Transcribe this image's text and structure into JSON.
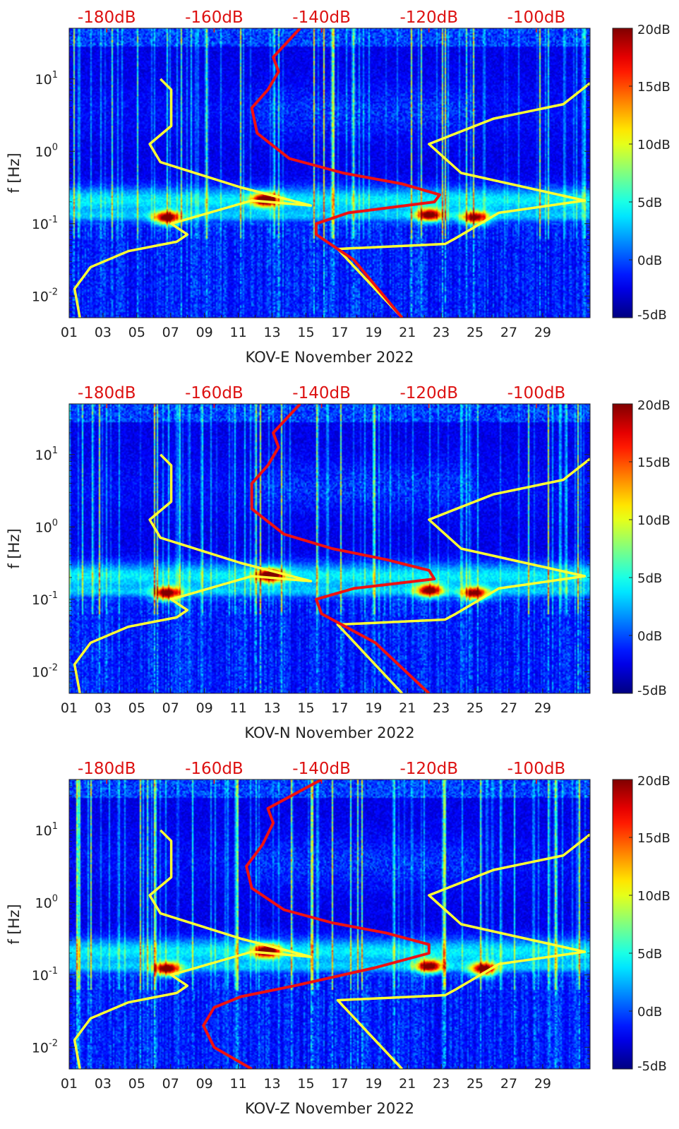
{
  "chart_data": [
    {
      "type": "heatmap",
      "xlabel": "KOV-E November 2022",
      "ylabel": "f [Hz]",
      "x_ticks": [
        "01",
        "03",
        "05",
        "07",
        "09",
        "11",
        "13",
        "15",
        "17",
        "19",
        "21",
        "23",
        "25",
        "27",
        "29"
      ],
      "y_ticks": [
        "10^-2",
        "10^-1",
        "10^0",
        "10^1"
      ],
      "top_ticks": [
        "-180dB",
        "-160dB",
        "-140dB",
        "-120dB",
        "-100dB"
      ],
      "colorbar_ticks": [
        "-5dB",
        "0dB",
        "5dB",
        "10dB",
        "15dB",
        "20dB"
      ],
      "colorbar_range": [
        -5,
        20
      ],
      "x_range": [
        1,
        31.8
      ],
      "y_range_log10": [
        -2.3,
        1.7
      ],
      "top_range_dB": [
        -187,
        -90
      ],
      "colormap": "jet",
      "hotspots": [
        {
          "day": 12.6,
          "log_f": -0.67,
          "dB": 20
        },
        {
          "day": 6.8,
          "log_f": -0.92,
          "dB": 18
        },
        {
          "day": 22.3,
          "log_f": -0.88,
          "dB": 17
        },
        {
          "day": 25.0,
          "log_f": -0.92,
          "dB": 16
        }
      ],
      "series": [
        {
          "color": "#ffff33",
          "x_unit": "dB",
          "points": [
            [
              -185,
              -2.3
            ],
            [
              -186,
              -1.9
            ],
            [
              -183,
              -1.6
            ],
            [
              -176,
              -1.38
            ],
            [
              -167,
              -1.25
            ],
            [
              -165,
              -1.15
            ],
            [
              -168,
              -1.0
            ],
            [
              -153,
              -0.68
            ],
            [
              -142,
              -0.75
            ],
            [
              -155,
              -0.5
            ],
            [
              -170,
              -0.15
            ],
            [
              -172,
              0.1
            ],
            [
              -168,
              0.35
            ],
            [
              -168,
              0.85
            ],
            [
              -170,
              1.0
            ]
          ]
        },
        {
          "color": "#ffff33",
          "x_unit": "dB",
          "points": [
            [
              -125,
              -2.3
            ],
            [
              -137,
              -1.35
            ],
            [
              -117,
              -1.28
            ],
            [
              -115,
              -1.2
            ],
            [
              -107,
              -0.85
            ],
            [
              -91,
              -0.68
            ],
            [
              -114,
              -0.3
            ],
            [
              -120,
              0.1
            ],
            [
              -108,
              0.45
            ],
            [
              -95,
              0.65
            ],
            [
              -89,
              1.0
            ]
          ]
        },
        {
          "color": "#ee1111",
          "x_unit": "dB",
          "points": [
            [
              -125,
              -2.3
            ],
            [
              -134,
              -1.5
            ],
            [
              -141,
              -1.15
            ],
            [
              -141,
              -1.0
            ],
            [
              -135,
              -0.85
            ],
            [
              -119,
              -0.7
            ],
            [
              -118,
              -0.6
            ],
            [
              -125,
              -0.45
            ],
            [
              -136,
              -0.3
            ],
            [
              -146,
              -0.1
            ],
            [
              -152,
              0.25
            ],
            [
              -153,
              0.6
            ],
            [
              -150,
              0.85
            ],
            [
              -148,
              1.1
            ],
            [
              -149,
              1.3
            ],
            [
              -144,
              1.7
            ]
          ]
        }
      ]
    },
    {
      "type": "heatmap",
      "xlabel": "KOV-N November 2022",
      "ylabel": "f [Hz]",
      "x_ticks": [
        "01",
        "03",
        "05",
        "07",
        "09",
        "11",
        "13",
        "15",
        "17",
        "19",
        "21",
        "23",
        "25",
        "27",
        "29"
      ],
      "y_ticks": [
        "10^-2",
        "10^-1",
        "10^0",
        "10^1"
      ],
      "top_ticks": [
        "-180dB",
        "-160dB",
        "-140dB",
        "-120dB",
        "-100dB"
      ],
      "colorbar_ticks": [
        "-5dB",
        "0dB",
        "5dB",
        "10dB",
        "15dB",
        "20dB"
      ],
      "colorbar_range": [
        -5,
        20
      ],
      "x_range": [
        1,
        31.8
      ],
      "y_range_log10": [
        -2.3,
        1.7
      ],
      "top_range_dB": [
        -187,
        -90
      ],
      "colormap": "jet",
      "hotspots": [
        {
          "day": 12.9,
          "log_f": -0.67,
          "dB": 20
        },
        {
          "day": 6.8,
          "log_f": -0.92,
          "dB": 18
        },
        {
          "day": 22.3,
          "log_f": -0.88,
          "dB": 17
        },
        {
          "day": 25.0,
          "log_f": -0.92,
          "dB": 16
        }
      ],
      "series": [
        {
          "color": "#ffff33",
          "x_unit": "dB",
          "points": [
            [
              -185,
              -2.3
            ],
            [
              -186,
              -1.9
            ],
            [
              -183,
              -1.6
            ],
            [
              -176,
              -1.38
            ],
            [
              -167,
              -1.25
            ],
            [
              -165,
              -1.15
            ],
            [
              -168,
              -1.0
            ],
            [
              -153,
              -0.68
            ],
            [
              -142,
              -0.75
            ],
            [
              -155,
              -0.5
            ],
            [
              -170,
              -0.15
            ],
            [
              -172,
              0.1
            ],
            [
              -168,
              0.35
            ],
            [
              -168,
              0.85
            ],
            [
              -170,
              1.0
            ]
          ]
        },
        {
          "color": "#ffff33",
          "x_unit": "dB",
          "points": [
            [
              -125,
              -2.3
            ],
            [
              -137,
              -1.35
            ],
            [
              -117,
              -1.28
            ],
            [
              -115,
              -1.2
            ],
            [
              -107,
              -0.85
            ],
            [
              -91,
              -0.68
            ],
            [
              -114,
              -0.3
            ],
            [
              -120,
              0.1
            ],
            [
              -108,
              0.45
            ],
            [
              -95,
              0.65
            ],
            [
              -89,
              1.0
            ]
          ]
        },
        {
          "color": "#ee1111",
          "x_unit": "dB",
          "points": [
            [
              -120,
              -2.3
            ],
            [
              -130,
              -1.6
            ],
            [
              -140,
              -1.2
            ],
            [
              -141,
              -1.0
            ],
            [
              -134,
              -0.85
            ],
            [
              -119,
              -0.72
            ],
            [
              -120,
              -0.6
            ],
            [
              -128,
              -0.45
            ],
            [
              -138,
              -0.3
            ],
            [
              -147,
              -0.1
            ],
            [
              -153,
              0.25
            ],
            [
              -153,
              0.6
            ],
            [
              -150,
              0.85
            ],
            [
              -148,
              1.1
            ],
            [
              -149,
              1.3
            ],
            [
              -144,
              1.7
            ]
          ]
        }
      ]
    },
    {
      "type": "heatmap",
      "xlabel": "KOV-Z November 2022",
      "ylabel": "f [Hz]",
      "x_ticks": [
        "01",
        "03",
        "05",
        "07",
        "09",
        "11",
        "13",
        "15",
        "17",
        "19",
        "21",
        "23",
        "25",
        "27",
        "29"
      ],
      "y_ticks": [
        "10^-2",
        "10^-1",
        "10^0",
        "10^1"
      ],
      "top_ticks": [
        "-180dB",
        "-160dB",
        "-140dB",
        "-120dB",
        "-100dB"
      ],
      "colorbar_ticks": [
        "-5dB",
        "0dB",
        "5dB",
        "10dB",
        "15dB",
        "20dB"
      ],
      "colorbar_range": [
        -5,
        20
      ],
      "x_range": [
        1,
        31.8
      ],
      "y_range_log10": [
        -2.3,
        1.7
      ],
      "top_range_dB": [
        -187,
        -90
      ],
      "colormap": "jet",
      "hotspots": [
        {
          "day": 12.7,
          "log_f": -0.67,
          "dB": 20
        },
        {
          "day": 6.8,
          "log_f": -0.92,
          "dB": 18
        },
        {
          "day": 22.3,
          "log_f": -0.88,
          "dB": 17
        },
        {
          "day": 25.5,
          "log_f": -0.92,
          "dB": 17
        }
      ],
      "series": [
        {
          "color": "#ffff33",
          "x_unit": "dB",
          "points": [
            [
              -185,
              -2.3
            ],
            [
              -186,
              -1.9
            ],
            [
              -183,
              -1.6
            ],
            [
              -176,
              -1.38
            ],
            [
              -167,
              -1.25
            ],
            [
              -165,
              -1.15
            ],
            [
              -168,
              -1.0
            ],
            [
              -153,
              -0.68
            ],
            [
              -142,
              -0.75
            ],
            [
              -155,
              -0.5
            ],
            [
              -170,
              -0.15
            ],
            [
              -172,
              0.1
            ],
            [
              -168,
              0.35
            ],
            [
              -168,
              0.85
            ],
            [
              -170,
              1.0
            ]
          ]
        },
        {
          "color": "#ffff33",
          "x_unit": "dB",
          "points": [
            [
              -125,
              -2.3
            ],
            [
              -137,
              -1.35
            ],
            [
              -117,
              -1.28
            ],
            [
              -115,
              -1.2
            ],
            [
              -107,
              -0.85
            ],
            [
              -91,
              -0.68
            ],
            [
              -114,
              -0.3
            ],
            [
              -120,
              0.1
            ],
            [
              -108,
              0.45
            ],
            [
              -95,
              0.65
            ],
            [
              -89,
              1.0
            ]
          ]
        },
        {
          "color": "#ee1111",
          "x_unit": "dB",
          "points": [
            [
              -153,
              -2.3
            ],
            [
              -160,
              -2.0
            ],
            [
              -162,
              -1.7
            ],
            [
              -160,
              -1.45
            ],
            [
              -155,
              -1.3
            ],
            [
              -145,
              -1.15
            ],
            [
              -130,
              -0.9
            ],
            [
              -120,
              -0.7
            ],
            [
              -120,
              -0.58
            ],
            [
              -128,
              -0.42
            ],
            [
              -138,
              -0.28
            ],
            [
              -147,
              -0.1
            ],
            [
              -153,
              0.2
            ],
            [
              -154,
              0.5
            ],
            [
              -151,
              0.8
            ],
            [
              -149,
              1.1
            ],
            [
              -150,
              1.3
            ],
            [
              -140,
              1.7
            ]
          ]
        }
      ]
    }
  ]
}
